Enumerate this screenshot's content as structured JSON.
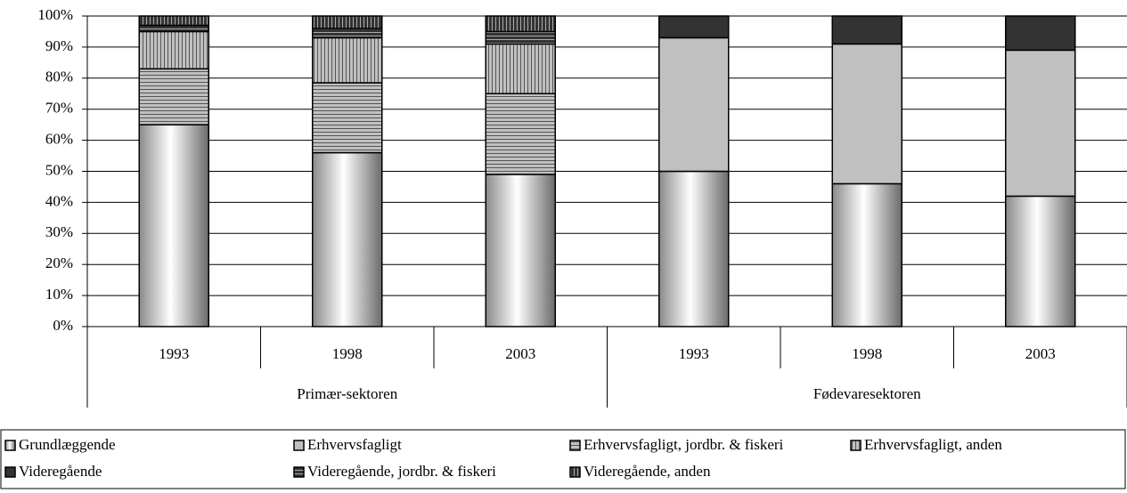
{
  "chart_data": {
    "type": "stacked-bar",
    "groups": [
      {
        "name": "Primær-sektoren",
        "categories": [
          "1993",
          "1998",
          "2003"
        ]
      },
      {
        "name": "Fødevaresektoren",
        "categories": [
          "1993",
          "1998",
          "2003"
        ]
      }
    ],
    "ylim": [
      0,
      100
    ],
    "yticks": [
      {
        "value": 0,
        "label": "0%"
      },
      {
        "value": 10,
        "label": "10%"
      },
      {
        "value": 20,
        "label": "20%"
      },
      {
        "value": 30,
        "label": "30%"
      },
      {
        "value": 40,
        "label": "40%"
      },
      {
        "value": 50,
        "label": "50%"
      },
      {
        "value": 60,
        "label": "60%"
      },
      {
        "value": 70,
        "label": "70%"
      },
      {
        "value": 80,
        "label": "80%"
      },
      {
        "value": 90,
        "label": "90%"
      },
      {
        "value": 100,
        "label": "100%"
      }
    ],
    "grid": true,
    "series": [
      {
        "name": "Grundlæggende",
        "color": "#ffffff",
        "pattern": "gradient",
        "values": [
          65,
          56,
          49,
          50,
          46,
          42
        ]
      },
      {
        "name": "Erhvervsfagligt",
        "color": "#c0c0c0",
        "pattern": "solid",
        "values": [
          null,
          null,
          null,
          43,
          45,
          47
        ]
      },
      {
        "name": "Erhvervsfagligt, jordbr. & fiskeri",
        "color": "#c0c0c0",
        "pattern": "hstripe",
        "values": [
          18,
          22.5,
          26,
          null,
          null,
          null
        ]
      },
      {
        "name": "Erhvervsfagligt, anden",
        "color": "#c0c0c0",
        "pattern": "vstripe",
        "values": [
          12,
          14.5,
          16,
          null,
          null,
          null
        ]
      },
      {
        "name": "Videregående",
        "color": "#333333",
        "pattern": "solid",
        "values": [
          null,
          null,
          null,
          7,
          9,
          11
        ]
      },
      {
        "name": "Videregående, jordbr. & fiskeri",
        "color": "#333333",
        "pattern": "hstripe",
        "values": [
          2,
          3,
          4,
          null,
          null,
          null
        ]
      },
      {
        "name": "Videregående, anden",
        "color": "#333333",
        "pattern": "vstripe",
        "values": [
          3,
          4,
          5,
          null,
          null,
          null
        ]
      }
    ]
  }
}
